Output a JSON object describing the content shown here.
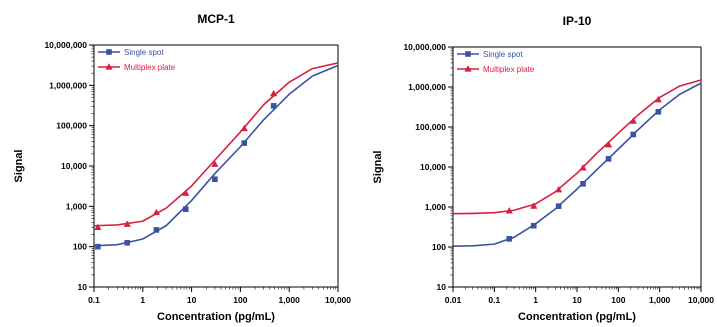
{
  "chart_data": [
    {
      "type": "line",
      "title": "MCP-1",
      "xlabel": "Concentration (pg/mL)",
      "ylabel": "Signal",
      "x_scale": "log",
      "y_scale": "log",
      "xlim": [
        0.1,
        10000
      ],
      "ylim": [
        10,
        10000000
      ],
      "x_ticks": [
        "0.1",
        "1",
        "10",
        "100",
        "1,000",
        "10,000"
      ],
      "y_ticks": [
        "10",
        "100",
        "1,000",
        "10,000",
        "100,000",
        "1,000,000",
        "10,000,000"
      ],
      "legend_position": "top-left",
      "series": [
        {
          "name": "Single spot",
          "color": "#3a52a3",
          "marker": "square",
          "points": [
            [
              0.12,
              100
            ],
            [
              0.48,
              125
            ],
            [
              1.9,
              260
            ],
            [
              7.6,
              850
            ],
            [
              30,
              4700
            ],
            [
              120,
              37000
            ],
            [
              480,
              310000
            ]
          ],
          "curve": [
            [
              0.1,
              105
            ],
            [
              0.3,
              112
            ],
            [
              1,
              155
            ],
            [
              3,
              330
            ],
            [
              10,
              1400
            ],
            [
              30,
              6500
            ],
            [
              100,
              30000
            ],
            [
              300,
              140000
            ],
            [
              1000,
              600000
            ],
            [
              3000,
              1700000
            ],
            [
              10000,
              3100000
            ]
          ]
        },
        {
          "name": "Multiplex plate",
          "color": "#d6203f",
          "marker": "triangle",
          "points": [
            [
              0.12,
              300
            ],
            [
              0.48,
              360
            ],
            [
              1.9,
              700
            ],
            [
              7.6,
              2100
            ],
            [
              30,
              11000
            ],
            [
              120,
              85000
            ],
            [
              480,
              620000
            ]
          ],
          "curve": [
            [
              0.1,
              330
            ],
            [
              0.3,
              345
            ],
            [
              1,
              430
            ],
            [
              3,
              900
            ],
            [
              10,
              3200
            ],
            [
              30,
              14000
            ],
            [
              100,
              70000
            ],
            [
              300,
              330000
            ],
            [
              1000,
              1200000
            ],
            [
              3000,
              2600000
            ],
            [
              10000,
              3600000
            ]
          ]
        }
      ]
    },
    {
      "type": "line",
      "title": "IP-10",
      "xlabel": "Concentration (pg/mL)",
      "ylabel": "Signal",
      "x_scale": "log",
      "y_scale": "log",
      "xlim": [
        0.01,
        10000
      ],
      "ylim": [
        10,
        10000000
      ],
      "x_ticks": [
        "0.01",
        "0.1",
        "1",
        "10",
        "100",
        "1,000",
        "10,000"
      ],
      "y_ticks": [
        "10",
        "100",
        "1,000",
        "10,000",
        "100,000",
        "1,000,000",
        "10,000,000"
      ],
      "legend_position": "top-left",
      "series": [
        {
          "name": "Single spot",
          "color": "#3a52a3",
          "marker": "square",
          "points": [
            [
              0.23,
              160
            ],
            [
              0.9,
              340
            ],
            [
              3.6,
              1050
            ],
            [
              14,
              3800
            ],
            [
              58,
              16000
            ],
            [
              230,
              65000
            ],
            [
              930,
              240000
            ]
          ],
          "curve": [
            [
              0.01,
              105
            ],
            [
              0.03,
              107
            ],
            [
              0.1,
              118
            ],
            [
              0.3,
              175
            ],
            [
              1,
              380
            ],
            [
              3,
              900
            ],
            [
              10,
              2800
            ],
            [
              30,
              8500
            ],
            [
              100,
              28000
            ],
            [
              300,
              85000
            ],
            [
              1000,
              270000
            ],
            [
              3000,
              650000
            ],
            [
              10000,
              1250000
            ]
          ]
        },
        {
          "name": "Multiplex plate",
          "color": "#d6203f",
          "marker": "triangle",
          "points": [
            [
              0.23,
              800
            ],
            [
              0.9,
              1050
            ],
            [
              3.6,
              2700
            ],
            [
              14,
              9500
            ],
            [
              58,
              36000
            ],
            [
              230,
              140000
            ],
            [
              930,
              480000
            ]
          ],
          "curve": [
            [
              0.01,
              680
            ],
            [
              0.03,
              690
            ],
            [
              0.1,
              720
            ],
            [
              0.3,
              830
            ],
            [
              1,
              1200
            ],
            [
              3,
              2400
            ],
            [
              10,
              7000
            ],
            [
              30,
              22000
            ],
            [
              100,
              70000
            ],
            [
              300,
              200000
            ],
            [
              1000,
              550000
            ],
            [
              3000,
              1050000
            ],
            [
              10000,
              1500000
            ]
          ]
        }
      ]
    }
  ]
}
